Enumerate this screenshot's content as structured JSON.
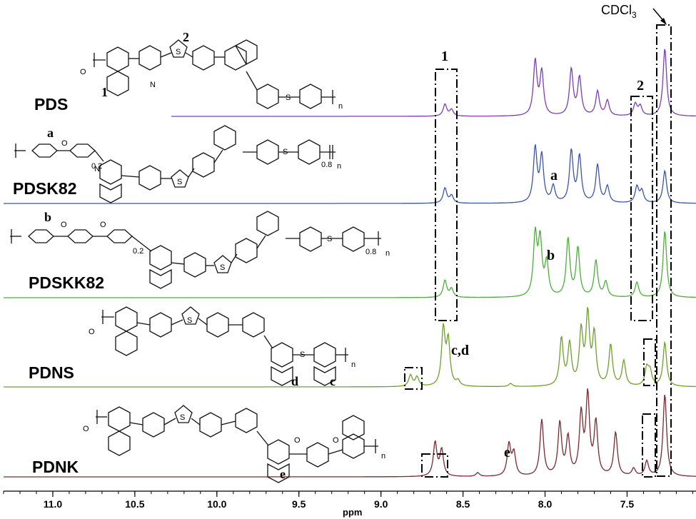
{
  "chart_data": {
    "type": "line",
    "title": "",
    "xlabel": "ppm",
    "ylabel": "",
    "xlim": [
      11.3,
      7.08
    ],
    "x_reversed": true,
    "xticks": [
      "11.0",
      "10.5",
      "10.0",
      "9.5",
      "9.0",
      "8.5",
      "8.0",
      "7.5"
    ],
    "grid": false,
    "legend": "none",
    "series": [
      {
        "name": "PDS",
        "color": "#7b3fb3",
        "peaks": [
          [
            8.61,
            0.22
          ],
          [
            8.57,
            0.12
          ],
          [
            8.06,
            1.0
          ],
          [
            8.02,
            0.8
          ],
          [
            7.84,
            0.85
          ],
          [
            7.79,
            0.7
          ],
          [
            7.68,
            0.45
          ],
          [
            7.62,
            0.28
          ],
          [
            7.45,
            0.22
          ],
          [
            7.42,
            0.18
          ],
          [
            7.27,
            1.25
          ]
        ]
      },
      {
        "name": "PDSK82",
        "color": "#3b55a6",
        "peaks": [
          [
            8.61,
            0.28
          ],
          [
            8.57,
            0.14
          ],
          [
            8.06,
            1.0
          ],
          [
            8.02,
            0.85
          ],
          [
            7.95,
            0.3
          ],
          [
            7.84,
            0.95
          ],
          [
            7.79,
            0.85
          ],
          [
            7.68,
            0.7
          ],
          [
            7.62,
            0.3
          ],
          [
            7.44,
            0.3
          ],
          [
            7.41,
            0.22
          ],
          [
            7.27,
            0.6
          ]
        ]
      },
      {
        "name": "PDSKK82",
        "color": "#4caf3a",
        "peaks": [
          [
            8.61,
            0.28
          ],
          [
            8.57,
            0.14
          ],
          [
            8.06,
            1.0
          ],
          [
            8.03,
            0.9
          ],
          [
            7.99,
            0.55
          ],
          [
            7.86,
            0.95
          ],
          [
            7.8,
            0.8
          ],
          [
            7.69,
            0.6
          ],
          [
            7.63,
            0.25
          ],
          [
            7.44,
            0.25
          ],
          [
            7.27,
            1.1
          ]
        ]
      },
      {
        "name": "PDNS",
        "color": "#6ea02c",
        "peaks": [
          [
            8.82,
            0.18
          ],
          [
            8.78,
            0.15
          ],
          [
            8.62,
            0.9
          ],
          [
            8.59,
            0.7
          ],
          [
            8.53,
            0.08
          ],
          [
            8.21,
            0.05
          ],
          [
            7.9,
            0.75
          ],
          [
            7.85,
            0.65
          ],
          [
            7.78,
            0.85
          ],
          [
            7.74,
            1.1
          ],
          [
            7.7,
            0.8
          ],
          [
            7.6,
            0.65
          ],
          [
            7.52,
            0.4
          ],
          [
            7.38,
            0.28
          ],
          [
            7.36,
            0.22
          ],
          [
            7.27,
            0.7
          ]
        ]
      },
      {
        "name": "PDNK",
        "color": "#7a2a30",
        "peaks": [
          [
            8.67,
            0.45
          ],
          [
            8.63,
            0.35
          ],
          [
            8.41,
            0.05
          ],
          [
            8.22,
            0.42
          ],
          [
            8.19,
            0.3
          ],
          [
            8.02,
            0.75
          ],
          [
            7.91,
            0.7
          ],
          [
            7.86,
            0.5
          ],
          [
            7.78,
            0.8
          ],
          [
            7.74,
            1.05
          ],
          [
            7.69,
            0.7
          ],
          [
            7.57,
            0.58
          ],
          [
            7.46,
            0.1
          ],
          [
            7.38,
            0.2
          ],
          [
            7.27,
            1.1
          ]
        ]
      }
    ],
    "annotations": [
      "1",
      "2",
      "a",
      "b",
      "c,d",
      "e",
      "CDCl3"
    ]
  },
  "labels": {
    "s1": "PDS",
    "s2": "PDSK82",
    "s3": "PDSKK82",
    "s4": "PDNS",
    "s5": "PDNK",
    "xlabel": "ppm",
    "ann_1": "1",
    "ann_2": "2",
    "ann_a": "a",
    "ann_b": "b",
    "ann_cd": "c,d",
    "ann_e": "e",
    "struct_1": "1",
    "struct_2": "2",
    "struct_a": "a",
    "struct_b": "b",
    "struct_c": "c",
    "struct_d": "d",
    "struct_e": "e",
    "sub_02": "0.2",
    "sub_08": "0.8",
    "sub_n": "n",
    "solvent": "CDCl",
    "solvent_sub": "3"
  },
  "colors": {
    "background": "#ffffff",
    "axis": "#000000",
    "PDS": "#7b3fb3",
    "PDSK82": "#3b55a6",
    "PDSKK82": "#4caf3a",
    "PDNS": "#6ea02c",
    "PDNK": "#7a2a30"
  }
}
